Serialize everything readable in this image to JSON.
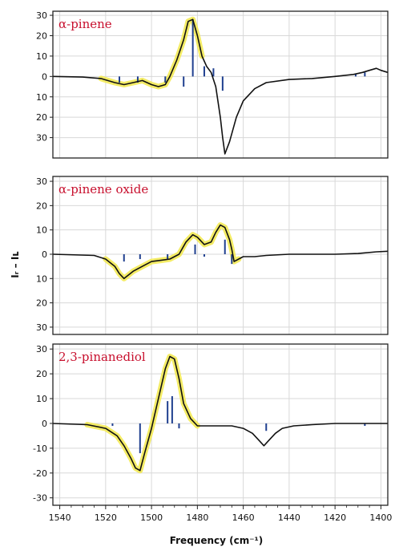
{
  "colors": {
    "label": "#c8102e",
    "trace": "#111111",
    "highlight": "#f3ea55",
    "stick": "#1f3f8f",
    "grid": "#d8d8d8",
    "frame": "#222222"
  },
  "chart_data": {
    "type": "line",
    "xlabel": "Frequency (cm⁻¹)",
    "ylabel": "Iᵣ – Iʟ",
    "x_ticks": [
      1540,
      1520,
      1500,
      1480,
      1460,
      1440,
      1420,
      1400
    ],
    "xlim": [
      1543,
      1397
    ],
    "panels": [
      {
        "label": "α-pinene",
        "ylim": [
          -40,
          32
        ],
        "y_ticks": [
          30,
          20,
          10,
          0,
          -10,
          -20,
          -30
        ],
        "y_tick_labels": [
          "30",
          "20",
          "10",
          "0",
          "10",
          "20",
          "30"
        ],
        "trace_x": [
          1543,
          1530,
          1522,
          1516,
          1512,
          1508,
          1504,
          1500,
          1497,
          1494,
          1492,
          1489,
          1486,
          1484,
          1482,
          1480,
          1478,
          1476,
          1474,
          1472,
          1470,
          1469,
          1468,
          1466,
          1463,
          1460,
          1455,
          1450,
          1440,
          1430,
          1420,
          1412,
          1408,
          1405,
          1402,
          1400,
          1397
        ],
        "trace_y": [
          0,
          -0.3,
          -1,
          -3,
          -4,
          -3,
          -2,
          -4,
          -5,
          -4,
          0,
          8,
          18,
          27,
          28,
          20,
          10,
          5,
          2,
          -5,
          -20,
          -30,
          -38,
          -32,
          -20,
          -12,
          -6,
          -3,
          -1.5,
          -1,
          0,
          1,
          2,
          3,
          4,
          3,
          2
        ],
        "highlight_x_range": [
          1522,
          1478
        ],
        "sticks": [
          {
            "x": 1514,
            "y": -3
          },
          {
            "x": 1506,
            "y": -3
          },
          {
            "x": 1494,
            "y": -3
          },
          {
            "x": 1486,
            "y": -5
          },
          {
            "x": 1482,
            "y": 28
          },
          {
            "x": 1477,
            "y": 5
          },
          {
            "x": 1473,
            "y": 4
          },
          {
            "x": 1469,
            "y": -7
          },
          {
            "x": 1411,
            "y": 1
          },
          {
            "x": 1407,
            "y": 2
          }
        ]
      },
      {
        "label": "α-pinene oxide",
        "ylim": [
          -33,
          32
        ],
        "y_ticks": [
          30,
          20,
          10,
          0,
          -10,
          -20,
          -30
        ],
        "y_tick_labels": [
          "30",
          "20",
          "10",
          "0",
          "10",
          "20",
          "30"
        ],
        "trace_x": [
          1543,
          1525,
          1520,
          1516,
          1514,
          1512,
          1508,
          1504,
          1500,
          1496,
          1492,
          1488,
          1485,
          1482,
          1480,
          1477,
          1474,
          1472,
          1470,
          1468,
          1466,
          1465,
          1464,
          1462,
          1460,
          1455,
          1450,
          1440,
          1430,
          1420,
          1410,
          1402,
          1397
        ],
        "trace_y": [
          0,
          -0.5,
          -2,
          -5,
          -8,
          -10,
          -7,
          -5,
          -3,
          -2.5,
          -2,
          0,
          5,
          8,
          7,
          4,
          5,
          9,
          12,
          11,
          6,
          2,
          -3,
          -2,
          -1,
          -1,
          -0.5,
          0,
          0,
          0,
          0.3,
          1,
          1.2
        ],
        "highlight_x_range": [
          1521,
          1462
        ],
        "sticks": [
          {
            "x": 1512,
            "y": -3
          },
          {
            "x": 1505,
            "y": -2
          },
          {
            "x": 1493,
            "y": -2
          },
          {
            "x": 1481,
            "y": 4
          },
          {
            "x": 1477,
            "y": -1
          },
          {
            "x": 1468,
            "y": 6
          },
          {
            "x": 1465,
            "y": -4
          }
        ]
      },
      {
        "label": "2,3-pinanediol",
        "ylim": [
          -33,
          32
        ],
        "y_ticks": [
          30,
          20,
          10,
          0,
          -10,
          -20,
          -30
        ],
        "y_tick_labels": [
          "30",
          "20",
          "10",
          "0",
          "-10",
          "-20",
          "-30"
        ],
        "trace_x": [
          1543,
          1528,
          1520,
          1515,
          1512,
          1509,
          1507,
          1505,
          1503,
          1500,
          1497,
          1494,
          1492,
          1490,
          1488,
          1486,
          1483,
          1480,
          1476,
          1470,
          1465,
          1460,
          1456,
          1453,
          1451,
          1449,
          1446,
          1443,
          1438,
          1430,
          1420,
          1410,
          1400,
          1397
        ],
        "trace_y": [
          0,
          -0.5,
          -2,
          -5,
          -9,
          -14,
          -18,
          -19,
          -12,
          -2,
          10,
          22,
          27,
          26,
          18,
          8,
          2,
          -1,
          -1,
          -1,
          -1,
          -2,
          -4,
          -7,
          -9,
          -7,
          -4,
          -2,
          -1,
          -0.5,
          0,
          0,
          0,
          0
        ],
        "highlight_x_range": [
          1528,
          1478
        ],
        "sticks": [
          {
            "x": 1517,
            "y": -1
          },
          {
            "x": 1505,
            "y": -12
          },
          {
            "x": 1493,
            "y": 9
          },
          {
            "x": 1491,
            "y": 11
          },
          {
            "x": 1488,
            "y": -2
          },
          {
            "x": 1450,
            "y": -3
          },
          {
            "x": 1407,
            "y": -1
          }
        ]
      }
    ]
  }
}
